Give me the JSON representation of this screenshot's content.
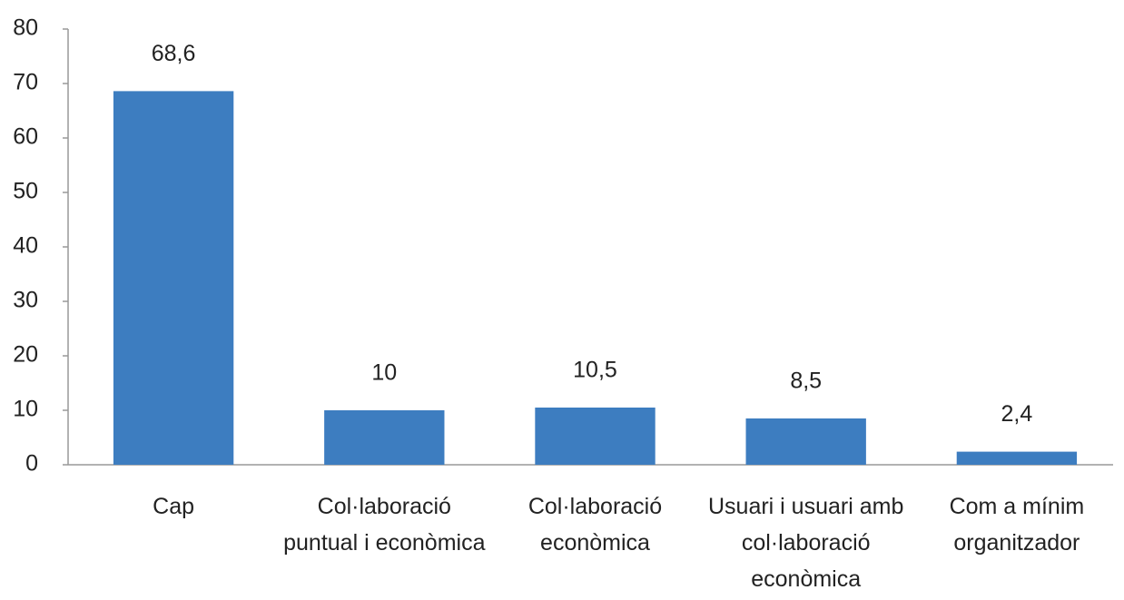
{
  "chart_data": {
    "type": "bar",
    "categories": [
      "Cap",
      "Col·laboració puntual i econòmica",
      "Col·laboració econòmica",
      "Usuari i usuari amb col·laboració econòmica",
      "Com a mínim organitzador"
    ],
    "values": [
      68.6,
      10,
      10.5,
      8.5,
      2.4
    ],
    "value_labels": [
      "68,6",
      "10",
      "10,5",
      "8,5",
      "2,4"
    ],
    "color": "#3d7dc0",
    "ylim": [
      0,
      80
    ],
    "yticks": [
      0,
      10,
      20,
      30,
      40,
      50,
      60,
      70,
      80
    ],
    "grid": false
  }
}
